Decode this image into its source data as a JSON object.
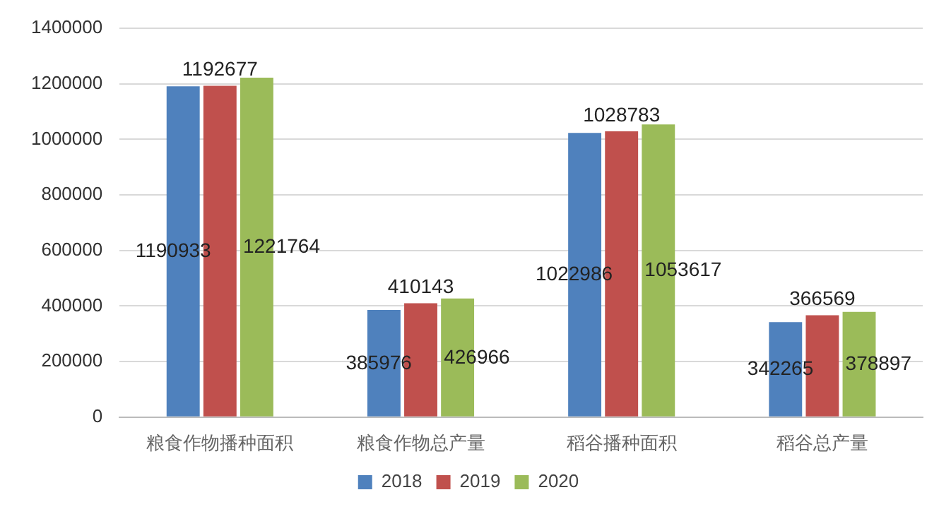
{
  "chart_data": {
    "type": "bar",
    "categories": [
      "粮食作物播种面积",
      "粮食作物总产量",
      "稻谷播种面积",
      "稻谷总产量"
    ],
    "series": [
      {
        "name": "2018",
        "color": "#4f81bd",
        "values": [
          1190933,
          385976,
          1022986,
          342265
        ]
      },
      {
        "name": "2019",
        "color": "#c0504d",
        "values": [
          1192677,
          410143,
          1028783,
          366569
        ]
      },
      {
        "name": "2020",
        "color": "#9bbb59",
        "values": [
          1221764,
          426966,
          1053617,
          378897
        ]
      }
    ],
    "ylim": [
      0,
      1400000
    ],
    "yticks": [
      0,
      200000,
      400000,
      600000,
      800000,
      1000000,
      1200000,
      1400000
    ],
    "grid": "y",
    "legend": "bottom",
    "data_labels": true
  }
}
